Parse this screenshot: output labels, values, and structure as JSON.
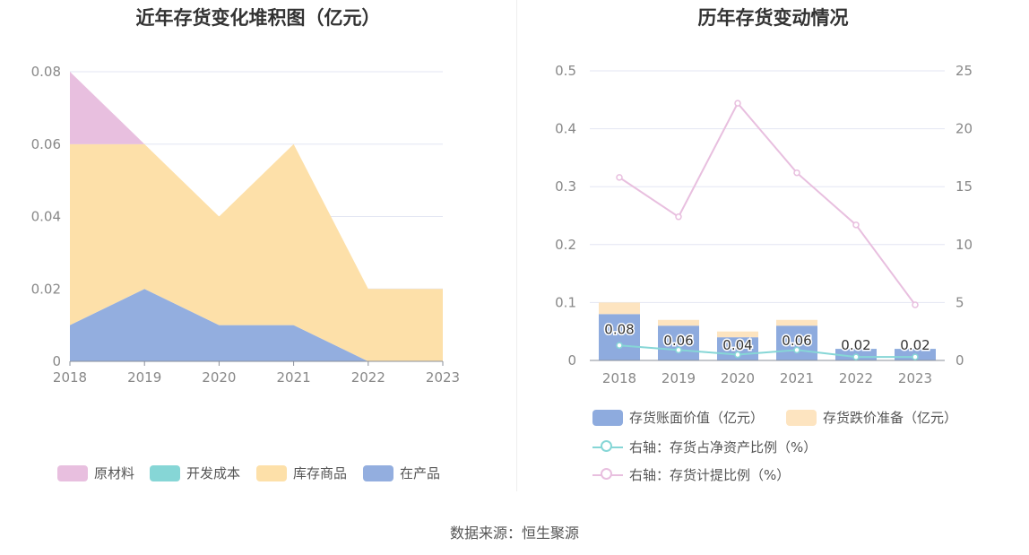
{
  "left_chart": {
    "title": "近年存货变化堆积图（亿元）",
    "legend": [
      {
        "name": "原材料",
        "color": "#e8bfdf"
      },
      {
        "name": "开发成本",
        "color": "#86d6d6"
      },
      {
        "name": "库存商品",
        "color": "#fde0a9"
      },
      {
        "name": "在产品",
        "color": "#93aedf"
      }
    ]
  },
  "right_chart": {
    "title": "历年存货变动情况",
    "legend": [
      {
        "name": "存货账面价值（亿元）",
        "color": "#8eabde"
      },
      {
        "name": "存货跌价准备（亿元）",
        "color": "#fde4c0"
      },
      {
        "name": "右轴：存货占净资产比例（%）",
        "color": "#86d6d6"
      },
      {
        "name": "右轴：存货计提比例（%）",
        "color": "#e8bfdf"
      }
    ]
  },
  "source": "数据来源：恒生聚源",
  "chart_data": [
    {
      "type": "area",
      "stacked": true,
      "title": "近年存货变化堆积图（亿元）",
      "x": [
        "2018",
        "2019",
        "2020",
        "2021",
        "2022",
        "2023"
      ],
      "ylim": [
        0,
        0.08
      ],
      "yticks": [
        "0",
        "0.02",
        "0.04",
        "0.06",
        "0.08"
      ],
      "grid": true,
      "legend_position": "bottom",
      "series": [
        {
          "name": "在产品",
          "color": "#93aedf",
          "values": [
            0.01,
            0.02,
            0.01,
            0.01,
            0,
            0
          ]
        },
        {
          "name": "开发成本",
          "color": "#86d6d6",
          "values": [
            0,
            0,
            0,
            0,
            0,
            0
          ]
        },
        {
          "name": "库存商品",
          "color": "#fde0a9",
          "values": [
            0.05,
            0.04,
            0.03,
            0.05,
            0.02,
            0.02
          ]
        },
        {
          "name": "原材料",
          "color": "#e8bfdf",
          "values": [
            0.02,
            0,
            0,
            0,
            0,
            0
          ]
        }
      ]
    },
    {
      "type": "bar",
      "stacked": true,
      "title": "历年存货变动情况",
      "categories": [
        "2018",
        "2019",
        "2020",
        "2021",
        "2022",
        "2023"
      ],
      "ylim_left": [
        0,
        0.5
      ],
      "yticks_left": [
        "0",
        "0.1",
        "0.2",
        "0.3",
        "0.4",
        "0.5"
      ],
      "ylim_right": [
        0,
        25
      ],
      "yticks_right": [
        "0",
        "5",
        "10",
        "15",
        "20",
        "25"
      ],
      "grid": true,
      "legend_position": "bottom",
      "series": [
        {
          "name": "存货账面价值（亿元）",
          "type": "bar",
          "axis": "left",
          "color": "#8eabde",
          "values": [
            0.08,
            0.06,
            0.04,
            0.06,
            0.02,
            0.02
          ],
          "labels": [
            "0.08",
            "0.06",
            "0.04",
            "0.06",
            "0.02",
            "0.02"
          ]
        },
        {
          "name": "存货跌价准备（亿元）",
          "type": "bar",
          "axis": "left",
          "color": "#fde4c0",
          "values": [
            0.02,
            0.01,
            0.01,
            0.01,
            0.0,
            0.0
          ]
        },
        {
          "name": "右轴：存货占净资产比例（%）",
          "type": "line",
          "axis": "right",
          "color": "#86d6d6",
          "values": [
            1.3,
            0.9,
            0.5,
            0.9,
            0.3,
            0.3
          ]
        },
        {
          "name": "右轴：存货计提比例（%）",
          "type": "line",
          "axis": "right",
          "color": "#e8bfdf",
          "values": [
            15.8,
            12.4,
            22.2,
            16.2,
            11.7,
            4.8
          ]
        }
      ]
    }
  ]
}
